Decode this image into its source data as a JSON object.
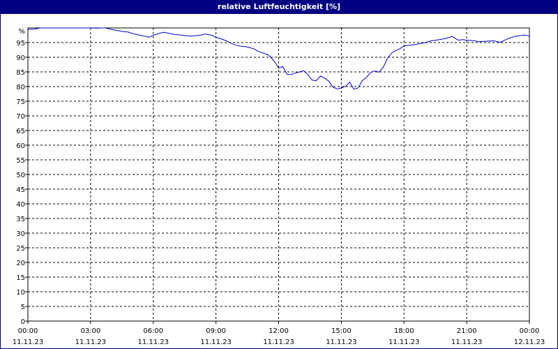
{
  "window": {
    "title": "relative Luftfeuchtigkeit [%]"
  },
  "chart_data": {
    "type": "line",
    "title": "relative Luftfeuchtigkeit [%]",
    "y_unit_label": "%",
    "ylim": [
      0,
      100
    ],
    "y_ticks": [
      0,
      5,
      10,
      15,
      20,
      25,
      30,
      35,
      40,
      45,
      50,
      55,
      60,
      65,
      70,
      75,
      80,
      85,
      90,
      95
    ],
    "x_range_hours": [
      0,
      24
    ],
    "x_ticks": [
      {
        "hour": 0,
        "time": "00:00",
        "date": "11.11.23"
      },
      {
        "hour": 3,
        "time": "03:00",
        "date": "11.11.23"
      },
      {
        "hour": 6,
        "time": "06:00",
        "date": "11.11.23"
      },
      {
        "hour": 9,
        "time": "09:00",
        "date": "11.11.23"
      },
      {
        "hour": 12,
        "time": "12:00",
        "date": "11.11.23"
      },
      {
        "hour": 15,
        "time": "15:00",
        "date": "11.11.23"
      },
      {
        "hour": 18,
        "time": "18:00",
        "date": "11.11.23"
      },
      {
        "hour": 21,
        "time": "21:00",
        "date": "11.11.23"
      },
      {
        "hour": 24,
        "time": "00:00",
        "date": "12.11.23"
      }
    ],
    "grid": true,
    "line_color": "#0000cc",
    "series": [
      {
        "x": [
          0,
          0.3,
          0.6,
          0.8,
          1.0,
          1.5,
          2.0,
          2.5,
          3.0,
          3.3,
          3.5,
          3.7,
          4.0,
          4.3,
          4.5,
          4.8,
          5.0,
          5.3,
          5.5,
          5.8,
          6.0,
          6.3,
          6.5,
          6.8,
          7.0,
          7.3,
          7.5,
          7.8,
          8.0,
          8.3,
          8.5,
          8.8,
          9.0,
          9.2,
          9.5,
          9.7,
          10.0,
          10.3,
          10.5,
          10.8,
          11.0,
          11.2,
          11.5,
          11.7,
          11.9,
          12.0,
          12.2,
          12.4,
          12.6,
          12.8,
          13.0,
          13.2,
          13.4,
          13.6,
          13.8,
          14.0,
          14.2,
          14.4,
          14.6,
          14.8,
          15.0,
          15.2,
          15.4,
          15.6,
          15.8,
          16.0,
          16.2,
          16.4,
          16.6,
          16.8,
          17.0,
          17.2,
          17.4,
          17.6,
          17.8,
          18.0,
          18.3,
          18.6,
          19.0,
          19.3,
          19.6,
          20.0,
          20.3,
          20.6,
          20.8,
          21.0,
          21.3,
          21.6,
          22.0,
          22.3,
          22.6,
          23.0,
          23.3,
          23.6,
          23.8,
          24.0
        ],
        "y": [
          99.5,
          99.6,
          100.2,
          100.4,
          100.5,
          100.6,
          100.2,
          100.4,
          100.2,
          99.9,
          100.1,
          100.0,
          99.5,
          99.1,
          98.8,
          98.6,
          98.1,
          97.6,
          97.3,
          96.8,
          97.5,
          98.2,
          98.5,
          98.1,
          97.8,
          97.6,
          97.4,
          97.2,
          97.3,
          97.6,
          97.9,
          97.5,
          96.8,
          96.4,
          95.6,
          94.8,
          94.0,
          93.7,
          93.5,
          92.9,
          92.1,
          91.6,
          90.8,
          89.4,
          87.5,
          86.3,
          86.8,
          84.2,
          84.1,
          84.6,
          85.0,
          85.4,
          84.1,
          82.2,
          82.0,
          83.6,
          82.9,
          81.8,
          79.8,
          79.2,
          79.5,
          80.1,
          81.5,
          79.1,
          79.5,
          82.0,
          83.1,
          84.8,
          85.3,
          84.9,
          86.5,
          89.5,
          91.4,
          92.3,
          92.9,
          93.9,
          94.1,
          94.4,
          95.0,
          95.6,
          95.9,
          96.4,
          97.1,
          95.8,
          96.0,
          95.8,
          95.7,
          95.3,
          95.5,
          95.6,
          95.1,
          96.4,
          97.1,
          97.4,
          97.6,
          97.2
        ]
      }
    ]
  }
}
